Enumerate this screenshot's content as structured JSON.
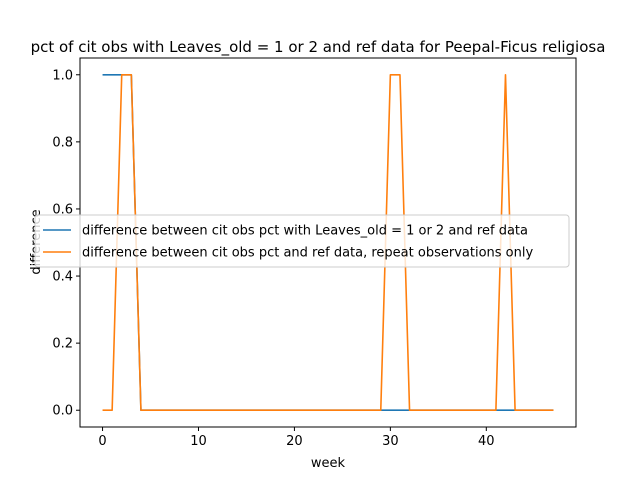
{
  "chart_data": {
    "type": "line",
    "title": "pct of cit obs with Leaves_old = 1 or 2 and ref data for Peepal-Ficus religiosa",
    "xlabel": "week",
    "ylabel": "difference",
    "xlim": [
      -2.35,
      49.35
    ],
    "ylim": [
      -0.05,
      1.05
    ],
    "xticks": [
      0,
      10,
      20,
      30,
      40
    ],
    "yticks": [
      0.0,
      0.2,
      0.4,
      0.6,
      0.8,
      1.0
    ],
    "xtick_labels": [
      "0",
      "10",
      "20",
      "30",
      "40"
    ],
    "ytick_labels": [
      "0.0",
      "0.2",
      "0.4",
      "0.6",
      "0.8",
      "1.0"
    ],
    "grid": false,
    "legend_position": "center",
    "x": [
      0,
      1,
      2,
      3,
      4,
      5,
      6,
      7,
      8,
      9,
      10,
      11,
      12,
      13,
      14,
      15,
      16,
      17,
      18,
      19,
      20,
      21,
      22,
      23,
      24,
      25,
      26,
      27,
      28,
      29,
      30,
      31,
      32,
      33,
      34,
      35,
      36,
      37,
      38,
      39,
      40,
      41,
      42,
      43,
      44,
      45,
      46,
      47
    ],
    "series": [
      {
        "name": "difference between cit obs pct with Leaves_old = 1 or 2 and ref data",
        "color": "#1f77b4",
        "values": [
          1,
          1,
          1,
          1,
          0,
          0,
          0,
          0,
          0,
          0,
          0,
          0,
          0,
          0,
          0,
          0,
          0,
          0,
          0,
          0,
          0,
          0,
          0,
          0,
          0,
          0,
          0,
          0,
          0,
          0,
          0,
          0,
          0,
          0,
          0,
          0,
          0,
          0,
          0,
          0,
          0,
          0,
          0,
          0,
          0,
          0,
          0,
          0
        ]
      },
      {
        "name": "difference between cit obs pct and ref data, repeat observations only",
        "color": "#ff7f0e",
        "values": [
          0,
          0,
          1,
          1,
          0,
          0,
          0,
          0,
          0,
          0,
          0,
          0,
          0,
          0,
          0,
          0,
          0,
          0,
          0,
          0,
          0,
          0,
          0,
          0,
          0,
          0,
          0,
          0,
          0,
          0,
          1,
          1,
          0,
          0,
          0,
          0,
          0,
          0,
          0,
          0,
          0,
          0,
          1,
          0,
          0,
          0,
          0,
          0
        ]
      }
    ]
  }
}
